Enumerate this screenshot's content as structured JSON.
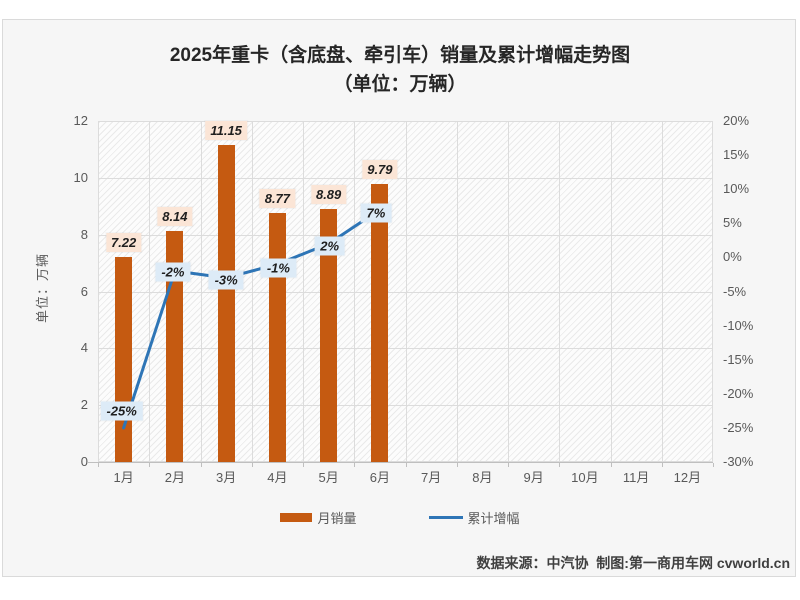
{
  "title": {
    "line1": "2025年重卡（含底盘、牵引车）销量及累计增幅走势图",
    "line2": "（单位：万辆）"
  },
  "y_axis_left": {
    "title": "单位：万辆",
    "ticks": [
      "12",
      "10",
      "8",
      "6",
      "4",
      "2",
      "0"
    ],
    "min": 0,
    "max": 12
  },
  "y_axis_right": {
    "ticks": [
      "20%",
      "15%",
      "10%",
      "5%",
      "0%",
      "-5%",
      "-10%",
      "-15%",
      "-20%",
      "-25%",
      "-30%"
    ],
    "min": -30,
    "max": 20
  },
  "chart_data": {
    "type": "bar+line",
    "title": "2025年重卡（含底盘、牵引车）销量及累计增幅走势图（单位：万辆）",
    "categories": [
      "1月",
      "2月",
      "3月",
      "4月",
      "5月",
      "6月",
      "7月",
      "8月",
      "9月",
      "10月",
      "11月",
      "12月"
    ],
    "series": [
      {
        "name": "月销量",
        "type": "bar",
        "color": "#C55A11",
        "label_bg": "#FBE5D6",
        "unit": "万辆",
        "values": [
          7.22,
          8.14,
          11.15,
          8.77,
          8.89,
          9.79,
          null,
          null,
          null,
          null,
          null,
          null
        ],
        "labels": [
          "7.22",
          "8.14",
          "11.15",
          "8.77",
          "8.89",
          "9.79"
        ]
      },
      {
        "name": "累计增幅",
        "type": "line",
        "color": "#2E75B6",
        "label_bg": "#DDEBF7",
        "unit": "%",
        "values": [
          -25,
          -2,
          -3,
          -1,
          2,
          7,
          null,
          null,
          null,
          null,
          null,
          null
        ],
        "labels": [
          "-25%",
          "-2%",
          "-3%",
          "-1%",
          "2%",
          "7%"
        ]
      }
    ],
    "axes": {
      "left_title": "单位：万辆",
      "left_range": [
        0,
        12
      ],
      "left_step": 2,
      "right_range": [
        -30,
        20
      ],
      "right_step": 5,
      "grid": true,
      "plot_fill": "diagonal-hatch"
    },
    "legend_position": "bottom"
  },
  "legend": {
    "items": [
      {
        "label": "月销量"
      },
      {
        "label": "累计增幅"
      }
    ]
  },
  "footer": {
    "source": "数据来源：中汽协  制图:第一商用车网 cvworld.cn"
  }
}
